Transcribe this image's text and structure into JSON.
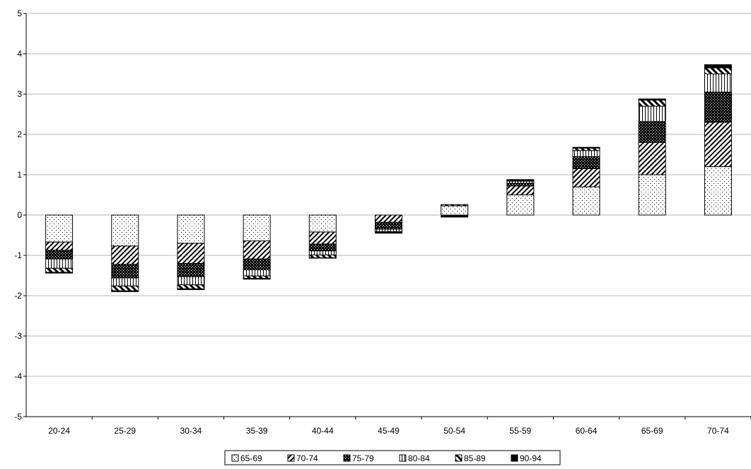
{
  "chart_data": {
    "type": "bar",
    "stacked": true,
    "categories": [
      "20-24",
      "25-29",
      "30-34",
      "35-39",
      "40-44",
      "45-49",
      "50-54",
      "55-59",
      "60-64",
      "65-69",
      "70-74"
    ],
    "series": [
      {
        "name": "65-69",
        "pattern": "dots",
        "values": [
          -0.67,
          -0.77,
          -0.7,
          -0.64,
          -0.42,
          0.0,
          0.23,
          0.5,
          0.7,
          1.0,
          1.2
        ]
      },
      {
        "name": "70-74",
        "pattern": "diagonal",
        "values": [
          -0.2,
          -0.45,
          -0.5,
          -0.45,
          -0.3,
          -0.18,
          0.0,
          0.22,
          0.45,
          0.8,
          1.1
        ]
      },
      {
        "name": "75-79",
        "pattern": "dark-check",
        "values": [
          -0.22,
          -0.34,
          -0.33,
          -0.27,
          -0.17,
          -0.17,
          0.0,
          0.07,
          0.3,
          0.52,
          0.75
        ]
      },
      {
        "name": "80-84",
        "pattern": "vertical",
        "values": [
          -0.23,
          -0.2,
          -0.2,
          -0.15,
          -0.1,
          -0.06,
          0.0,
          0.05,
          0.15,
          0.38,
          0.45
        ]
      },
      {
        "name": "85-89",
        "pattern": "backslash",
        "values": [
          -0.1,
          -0.12,
          -0.1,
          -0.06,
          -0.07,
          -0.02,
          0.03,
          0.02,
          0.06,
          0.15,
          0.15
        ]
      },
      {
        "name": "90-94",
        "pattern": "solid",
        "values": [
          -0.02,
          -0.02,
          -0.02,
          -0.02,
          -0.01,
          -0.02,
          -0.05,
          0.02,
          0.02,
          0.03,
          0.08
        ]
      }
    ],
    "ylim": [
      -5,
      5
    ],
    "yticks": [
      "5",
      "4",
      "3",
      "2",
      "1",
      "0",
      "-1",
      "-2",
      "-3",
      "-4",
      "-5"
    ],
    "grid": true,
    "legend_position": "bottom-center",
    "title": "",
    "xlabel": "",
    "ylabel": ""
  }
}
